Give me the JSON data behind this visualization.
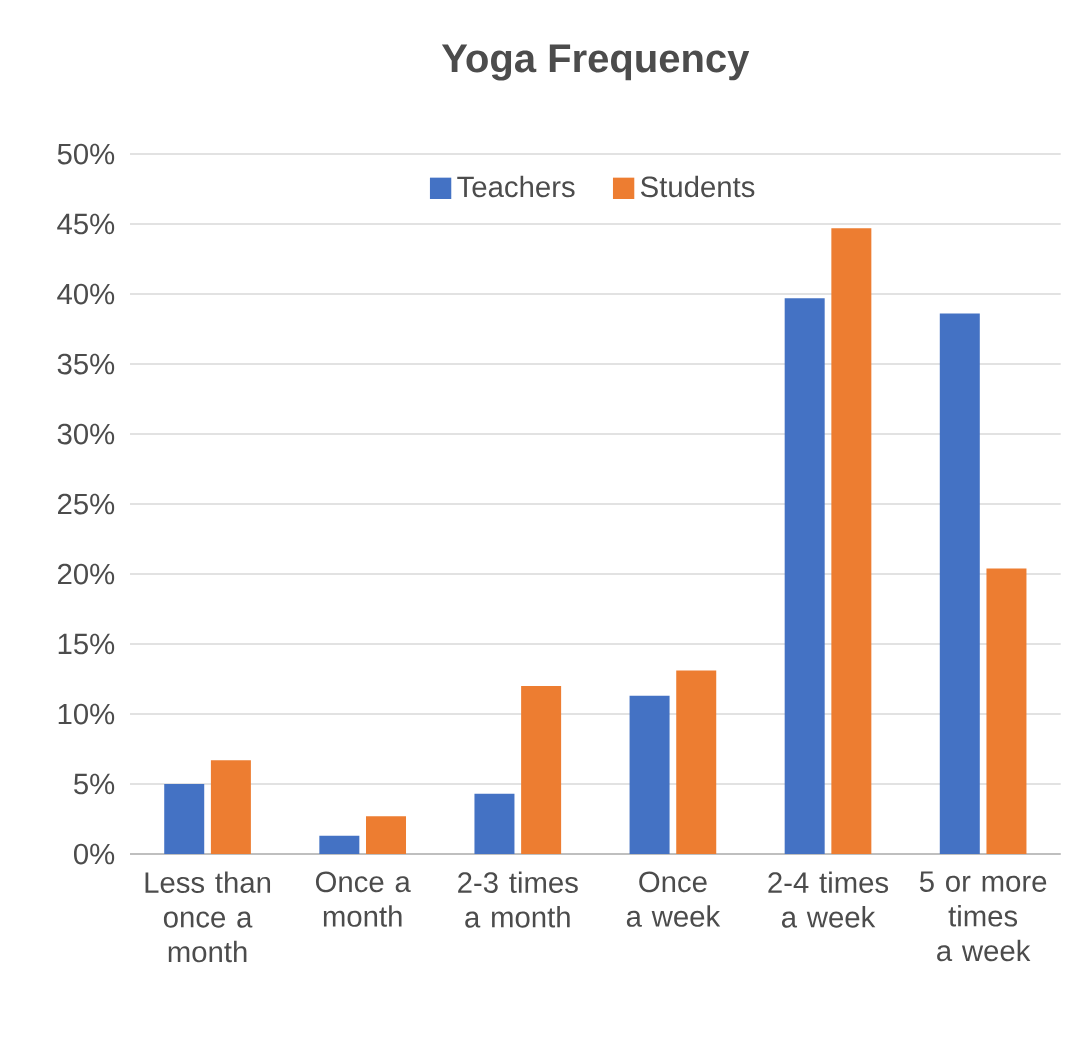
{
  "chart_data": {
    "type": "bar",
    "title": "Yoga Frequency",
    "categories": [
      "Less than once a month",
      "Once a month",
      "2-3 times a month",
      "Once a week",
      "2-4 times a week",
      "5 or more times a week"
    ],
    "series": [
      {
        "name": "Teachers",
        "color": "#4472c4",
        "values": [
          5.0,
          1.3,
          4.3,
          11.3,
          39.7,
          38.6
        ]
      },
      {
        "name": "Students",
        "color": "#ed7d31",
        "values": [
          6.7,
          2.7,
          12.0,
          13.1,
          44.7,
          20.4
        ]
      }
    ],
    "ylim": [
      0,
      50
    ],
    "yticks": [
      {
        "value": 0,
        "label": "0%"
      },
      {
        "value": 5,
        "label": "5%"
      },
      {
        "value": 10,
        "label": "10%"
      },
      {
        "value": 15,
        "label": "15%"
      },
      {
        "value": 20,
        "label": "20%"
      },
      {
        "value": 25,
        "label": "25%"
      },
      {
        "value": 30,
        "label": "30%"
      },
      {
        "value": 35,
        "label": "35%"
      },
      {
        "value": 40,
        "label": "40%"
      },
      {
        "value": 45,
        "label": "45%"
      },
      {
        "value": 50,
        "label": "50%"
      }
    ],
    "grid": "y",
    "legend": "top"
  }
}
